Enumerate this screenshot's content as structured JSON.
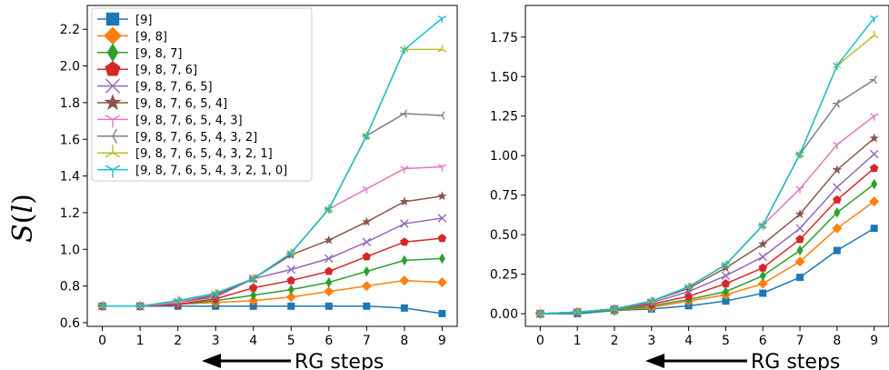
{
  "chart_data": [
    {
      "type": "line",
      "title": "",
      "xlabel": "RG steps",
      "ylabel": "S(l)",
      "ylabel_math": {
        "base": "S",
        "paren_open": "(",
        "var": "l",
        "paren_close": ")"
      },
      "xlim": [
        -0.4,
        9.4
      ],
      "ylim": [
        0.58,
        2.33
      ],
      "xticks": [
        0,
        1,
        2,
        3,
        4,
        5,
        6,
        7,
        8,
        9
      ],
      "yticks": [
        0.6,
        0.8,
        1.0,
        1.2,
        1.4,
        1.6,
        1.8,
        2.0,
        2.2
      ],
      "ytick_labels": [
        "0.6",
        "0.8",
        "1.0",
        "1.2",
        "1.4",
        "1.6",
        "1.8",
        "2.0",
        "2.2"
      ],
      "grid": false,
      "legend_position": "top-left",
      "x": [
        0,
        1,
        2,
        3,
        4,
        5,
        6,
        7,
        8,
        9
      ],
      "series": [
        {
          "name": "[9]",
          "color": "#1f77b4",
          "marker": "square",
          "values": [
            0.69,
            0.69,
            0.69,
            0.69,
            0.69,
            0.69,
            0.69,
            0.69,
            0.68,
            0.65
          ]
        },
        {
          "name": "[9, 8]",
          "color": "#ff7f0e",
          "marker": "diamond",
          "values": [
            0.69,
            0.69,
            0.7,
            0.71,
            0.72,
            0.74,
            0.77,
            0.8,
            0.83,
            0.82
          ]
        },
        {
          "name": "[9, 8, 7]",
          "color": "#2ca02c",
          "marker": "thin-diamond",
          "values": [
            0.69,
            0.69,
            0.7,
            0.72,
            0.75,
            0.78,
            0.82,
            0.88,
            0.94,
            0.95
          ]
        },
        {
          "name": "[9, 8, 7, 6]",
          "color": "#d62728",
          "marker": "pentagon",
          "values": [
            0.69,
            0.69,
            0.7,
            0.73,
            0.79,
            0.83,
            0.88,
            0.96,
            1.04,
            1.06
          ]
        },
        {
          "name": "[9, 8, 7, 6, 5]",
          "color": "#9467bd",
          "marker": "x",
          "values": [
            0.69,
            0.69,
            0.71,
            0.74,
            0.84,
            0.89,
            0.95,
            1.04,
            1.14,
            1.17
          ]
        },
        {
          "name": "[9, 8, 7, 6, 5, 4]",
          "color": "#8c564b",
          "marker": "star",
          "values": [
            0.69,
            0.69,
            0.71,
            0.75,
            0.84,
            0.97,
            1.05,
            1.15,
            1.26,
            1.29
          ]
        },
        {
          "name": "[9, 8, 7, 6, 5, 4, 3]",
          "color": "#e377c2",
          "marker": "tri-right",
          "values": [
            0.69,
            0.69,
            0.71,
            0.76,
            0.84,
            0.98,
            1.22,
            1.33,
            1.44,
            1.45
          ]
        },
        {
          "name": "[9, 8, 7, 6, 5, 4, 3, 2]",
          "color": "#7f7f7f",
          "marker": "tri-left",
          "values": [
            0.69,
            0.69,
            0.72,
            0.76,
            0.84,
            0.98,
            1.22,
            1.62,
            1.74,
            1.73
          ]
        },
        {
          "name": "[9, 8, 7, 6, 5, 4, 3, 2, 1]",
          "color": "#bcbd22",
          "marker": "tri-up",
          "values": [
            0.69,
            0.69,
            0.72,
            0.76,
            0.84,
            0.98,
            1.22,
            1.62,
            2.09,
            2.09
          ]
        },
        {
          "name": "[9, 8, 7, 6, 5, 4, 3, 2, 1, 0]",
          "color": "#17becf",
          "marker": "tri-down",
          "values": [
            0.69,
            0.69,
            0.72,
            0.76,
            0.84,
            0.98,
            1.22,
            1.62,
            2.09,
            2.26
          ]
        }
      ]
    },
    {
      "type": "line",
      "title": "",
      "xlabel": "RG steps",
      "ylabel": "",
      "xlim": [
        -0.4,
        9.4
      ],
      "ylim": [
        -0.08,
        1.95
      ],
      "xticks": [
        0,
        1,
        2,
        3,
        4,
        5,
        6,
        7,
        8,
        9
      ],
      "yticks": [
        0.0,
        0.25,
        0.5,
        0.75,
        1.0,
        1.25,
        1.5,
        1.75
      ],
      "ytick_labels": [
        "0.00",
        "0.25",
        "0.50",
        "0.75",
        "1.00",
        "1.25",
        "1.50",
        "1.75"
      ],
      "grid": false,
      "x": [
        0,
        1,
        2,
        3,
        4,
        5,
        6,
        7,
        8,
        9
      ],
      "series": [
        {
          "color": "#1f77b4",
          "marker": "square",
          "values": [
            0.0,
            0.0,
            0.02,
            0.03,
            0.05,
            0.08,
            0.13,
            0.23,
            0.4,
            0.54
          ]
        },
        {
          "color": "#ff7f0e",
          "marker": "diamond",
          "values": [
            0.0,
            0.01,
            0.02,
            0.04,
            0.08,
            0.12,
            0.19,
            0.33,
            0.54,
            0.71
          ]
        },
        {
          "color": "#2ca02c",
          "marker": "thin-diamond",
          "values": [
            0.0,
            0.01,
            0.02,
            0.05,
            0.09,
            0.14,
            0.24,
            0.4,
            0.64,
            0.82
          ]
        },
        {
          "color": "#d62728",
          "marker": "pentagon",
          "values": [
            0.0,
            0.01,
            0.03,
            0.06,
            0.11,
            0.19,
            0.29,
            0.47,
            0.72,
            0.92
          ]
        },
        {
          "color": "#9467bd",
          "marker": "x",
          "values": [
            0.0,
            0.01,
            0.03,
            0.07,
            0.14,
            0.24,
            0.36,
            0.54,
            0.8,
            1.01
          ]
        },
        {
          "color": "#8c564b",
          "marker": "star",
          "values": [
            0.0,
            0.01,
            0.03,
            0.08,
            0.16,
            0.29,
            0.44,
            0.63,
            0.91,
            1.11
          ]
        },
        {
          "color": "#e377c2",
          "marker": "tri-right",
          "values": [
            0.0,
            0.01,
            0.03,
            0.08,
            0.17,
            0.31,
            0.56,
            0.79,
            1.07,
            1.25
          ]
        },
        {
          "color": "#7f7f7f",
          "marker": "tri-left",
          "values": [
            0.0,
            0.01,
            0.03,
            0.08,
            0.17,
            0.31,
            0.56,
            1.01,
            1.33,
            1.48
          ]
        },
        {
          "color": "#bcbd22",
          "marker": "tri-up",
          "values": [
            0.0,
            0.01,
            0.03,
            0.08,
            0.17,
            0.31,
            0.56,
            1.01,
            1.57,
            1.76
          ]
        },
        {
          "color": "#17becf",
          "marker": "tri-down",
          "values": [
            0.0,
            0.01,
            0.03,
            0.08,
            0.17,
            0.31,
            0.56,
            1.01,
            1.57,
            1.87
          ]
        }
      ]
    }
  ]
}
